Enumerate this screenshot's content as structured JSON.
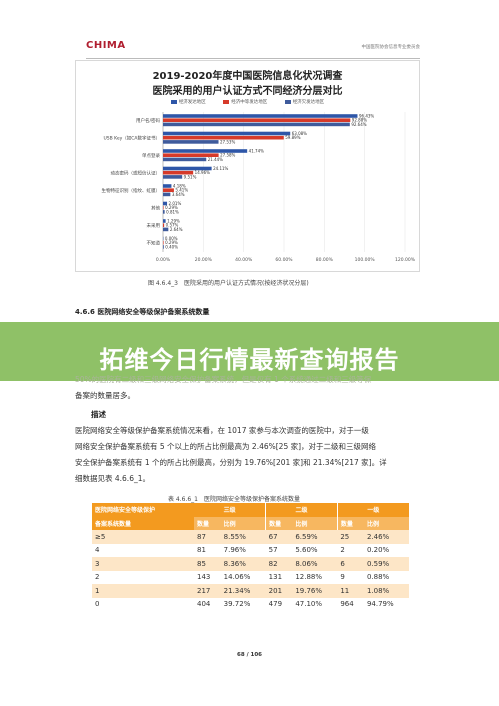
{
  "header": {
    "logo": "CHIMA",
    "org": "中国医院协会信息专业委员会"
  },
  "chart_data": {
    "type": "bar",
    "orientation": "horizontal",
    "title_line1": "2019-2020年度中国医院信息化状况调查",
    "title_line2": "医院采用的用户认证方式不同经济分层对比",
    "categories": [
      "用户名/密码",
      "USB Key（如CA数字证书）",
      "单点登录",
      "动态密码（或短信认证）",
      "生物特征识别（指纹、虹膜）",
      "其他",
      "未采用",
      "不知道"
    ],
    "series": [
      {
        "name": "经济发达地区",
        "color": "#2e56a8",
        "values": [
          96.43,
          63.08,
          41.74,
          24.11,
          4.18,
          2.01,
          1.29,
          0.0
        ]
      },
      {
        "name": "经济中等发达地区",
        "color": "#d63a2a",
        "values": [
          92.88,
          59.89,
          27.58,
          14.96,
          5.41,
          0.29,
          0.57,
          0.29
        ]
      },
      {
        "name": "经济欠发达地区",
        "color": "#3f5b9c",
        "values": [
          92.64,
          27.53,
          21.44,
          9.51,
          3.64,
          0.81,
          2.64,
          0.4
        ]
      }
    ],
    "value_labels": [
      [
        "96.43%",
        "92.88%",
        "92.64%"
      ],
      [
        "63.08%",
        "59.89%",
        "27.53%"
      ],
      [
        "41.74%",
        "27.58%",
        "21.44%"
      ],
      [
        "24.11%",
        "14.96%",
        "9.51%"
      ],
      [
        "4.18%",
        "5.41%",
        "3.64%"
      ],
      [
        "2.01%",
        "0.29%",
        "0.81%"
      ],
      [
        "1.29%",
        "0.57%",
        "2.64%"
      ],
      [
        "0.00%",
        "0.29%",
        "0.40%"
      ]
    ],
    "xlim": [
      0,
      120
    ],
    "xticks": [
      "0.00%",
      "20.00%",
      "40.00%",
      "60.00%",
      "80.00%",
      "100.00%",
      "120.00%"
    ],
    "legend_position": "top",
    "grid": true
  },
  "figure_caption": "图 4.6.4_3　医院采用的用户认证方式情况(按经济状况分层)",
  "section_heading": "4.6.6  医院网络安全等级保护备案系统数量",
  "overlay_title": "拓维今日行情最新查询报告",
  "paragraph1": {
    "line1": "50%的医院有二级和三级网络安全保护备案系统，但是仅有 1 个系统通过二级和三级等保",
    "line2": "备案的数量居多。"
  },
  "description_heading": "描述",
  "paragraph2": {
    "line1": "医院网络安全等级保护备案系统情况来看，在 1017 家参与本次调查的医院中，对于一级",
    "line2": "网络安全保护备案系统有 5 个以上的所占比例最高为 2.46%[25 家]，对于二级和三级网络",
    "line3": "安全保护备案系统有 1 个的所占比例最高，分别为 19.76%[201 家]和 21.34%[217 家]。详",
    "line4": "细数据见表 4.6.6_1。"
  },
  "table_caption": "表 4.6.6_1　医院网络安全等级保护备案系统数量",
  "table": {
    "group_header": "医院网络安全等级保护",
    "levels": [
      "三级",
      "二级",
      "一级"
    ],
    "row_header": "备案系统数量",
    "col_count": "数量",
    "col_ratio": "比例",
    "rows": [
      {
        "label": "≥5",
        "c3": "87",
        "p3": "8.55%",
        "c2": "67",
        "p2": "6.59%",
        "c1": "25",
        "p1": "2.46%"
      },
      {
        "label": "4",
        "c3": "81",
        "p3": "7.96%",
        "c2": "57",
        "p2": "5.60%",
        "c1": "2",
        "p1": "0.20%"
      },
      {
        "label": "3",
        "c3": "85",
        "p3": "8.36%",
        "c2": "82",
        "p2": "8.06%",
        "c1": "6",
        "p1": "0.59%"
      },
      {
        "label": "2",
        "c3": "143",
        "p3": "14.06%",
        "c2": "131",
        "p2": "12.88%",
        "c1": "9",
        "p1": "0.88%"
      },
      {
        "label": "1",
        "c3": "217",
        "p3": "21.34%",
        "c2": "201",
        "p2": "19.76%",
        "c1": "11",
        "p1": "1.08%"
      },
      {
        "label": "0",
        "c3": "404",
        "p3": "39.72%",
        "c2": "479",
        "p2": "47.10%",
        "c1": "964",
        "p1": "94.79%"
      }
    ]
  },
  "page_number": "68 / 106"
}
